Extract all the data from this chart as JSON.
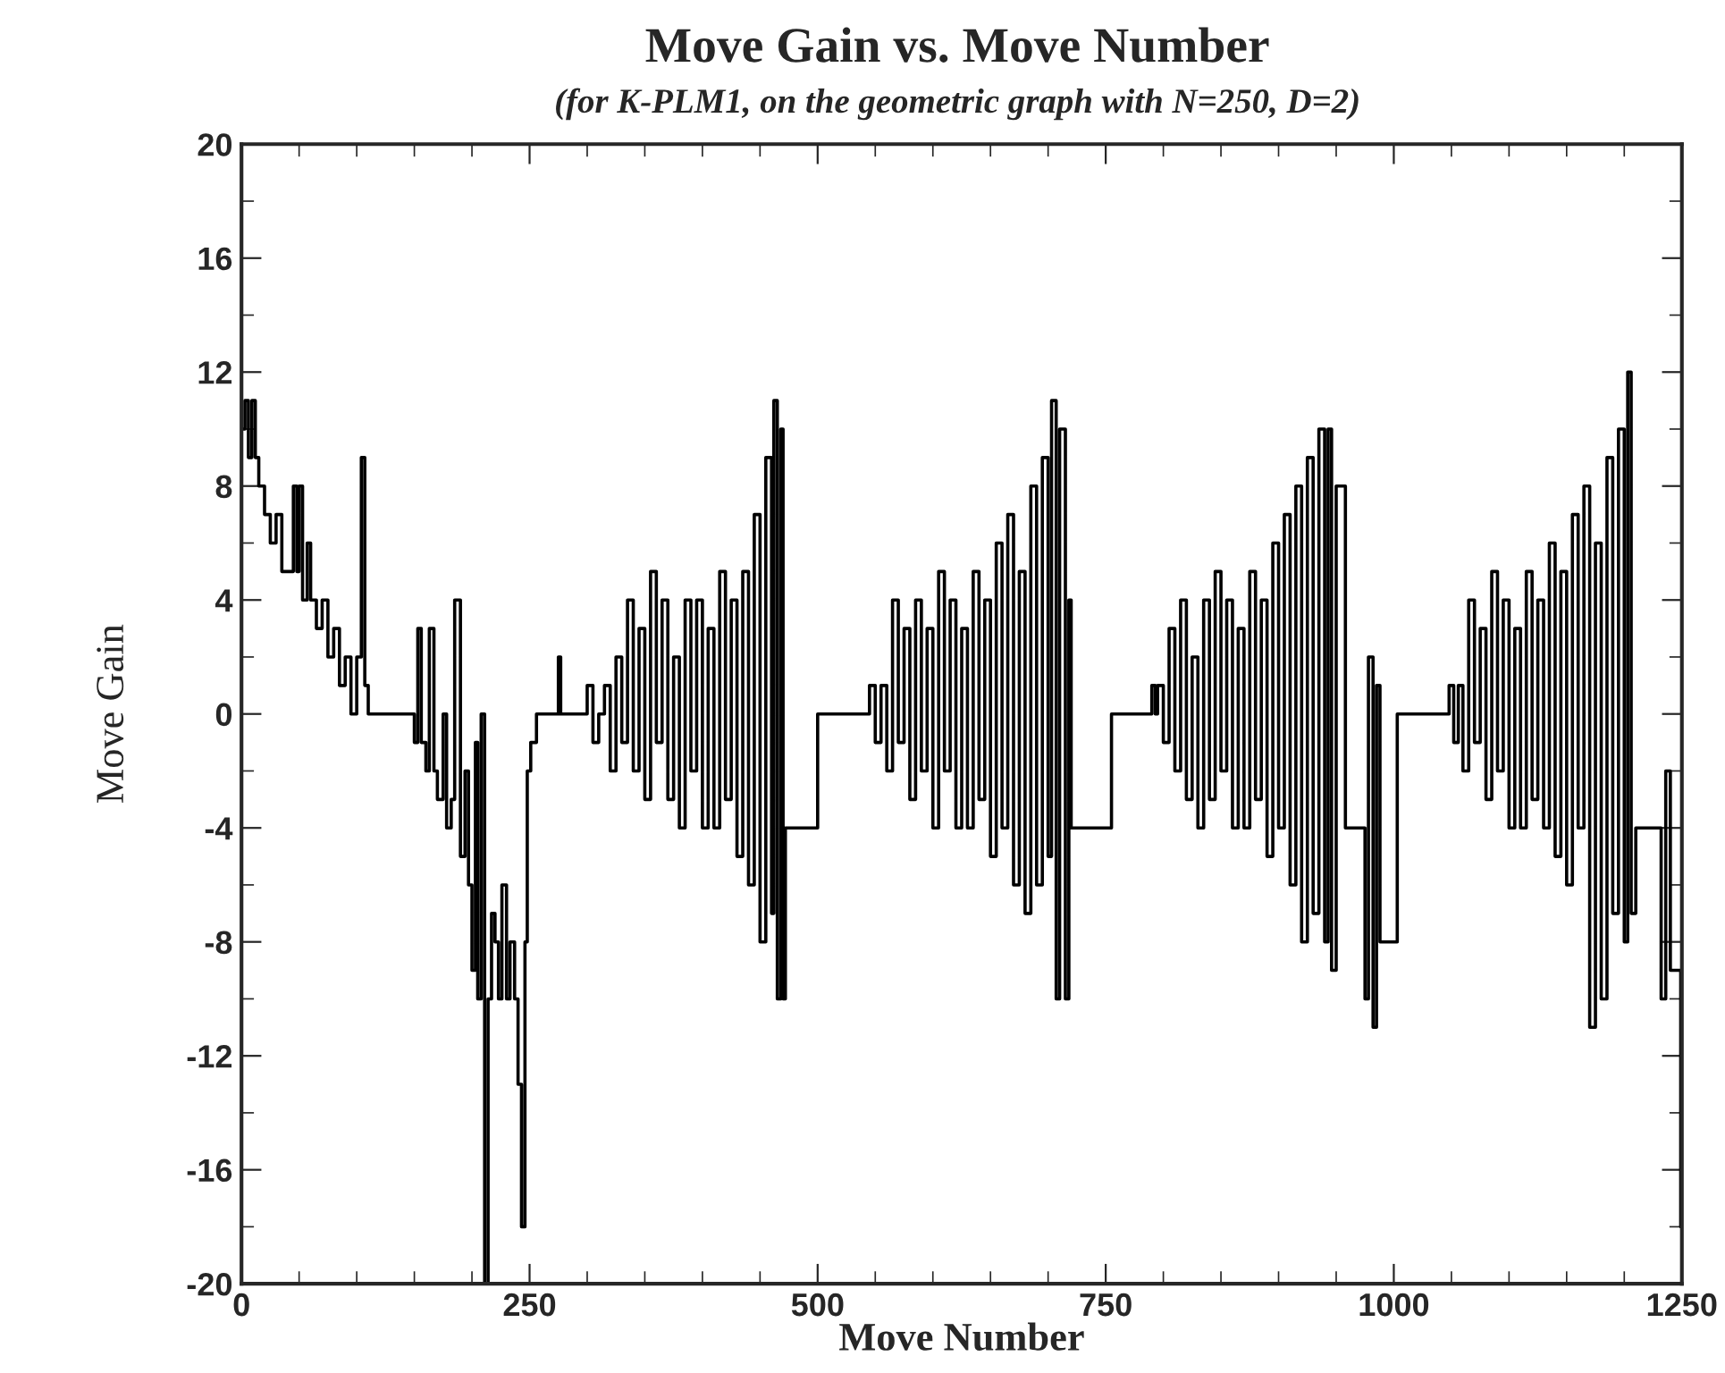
{
  "chart_data": {
    "type": "step",
    "title": "Move Gain vs. Move Number",
    "subtitle": "(for K-PLM1, on the geometric graph with N=250, D=2)",
    "xlabel": "Move Number",
    "ylabel": "Move Gain",
    "xlim": [
      0,
      1250
    ],
    "ylim": [
      -20,
      20
    ],
    "xticks": [
      0,
      250,
      500,
      750,
      1000,
      1250
    ],
    "yticks": [
      -20,
      -16,
      -12,
      -8,
      -4,
      0,
      4,
      8,
      12,
      16,
      20
    ],
    "grid": false,
    "legend": false,
    "marker": "none",
    "line_style": "solid",
    "series": [
      {
        "color": "#000000",
        "x": [
          0,
          3,
          6,
          9,
          12,
          15,
          20,
          25,
          30,
          35,
          40,
          45,
          48,
          50,
          53,
          57,
          60,
          65,
          70,
          75,
          80,
          85,
          90,
          95,
          100,
          104,
          107,
          110,
          150,
          153,
          156,
          160,
          163,
          167,
          170,
          175,
          178,
          182,
          185,
          190,
          194,
          197,
          200,
          203,
          205,
          208,
          211,
          214,
          217,
          220,
          223,
          226,
          230,
          233,
          237,
          240,
          243,
          246,
          248,
          251,
          253,
          256,
          260,
          275,
          277,
          300,
          305,
          310,
          315,
          320,
          325,
          330,
          335,
          340,
          345,
          350,
          355,
          360,
          365,
          370,
          375,
          380,
          385,
          390,
          395,
          400,
          405,
          410,
          415,
          420,
          425,
          430,
          435,
          440,
          445,
          450,
          455,
          460,
          462,
          465,
          468,
          470,
          472,
          500,
          545,
          550,
          555,
          560,
          565,
          570,
          575,
          580,
          585,
          590,
          595,
          600,
          605,
          610,
          615,
          620,
          625,
          630,
          635,
          640,
          645,
          650,
          655,
          660,
          665,
          670,
          675,
          680,
          685,
          690,
          695,
          700,
          703,
          707,
          710,
          715,
          718,
          720,
          755,
          790,
          793,
          795,
          800,
          805,
          810,
          815,
          820,
          825,
          830,
          835,
          840,
          845,
          850,
          855,
          860,
          865,
          870,
          875,
          880,
          885,
          890,
          895,
          900,
          905,
          910,
          915,
          920,
          925,
          930,
          935,
          940,
          943,
          946,
          950,
          958,
          975,
          978,
          982,
          985,
          988,
          1003,
          1048,
          1052,
          1056,
          1060,
          1065,
          1070,
          1075,
          1080,
          1085,
          1090,
          1095,
          1100,
          1105,
          1110,
          1115,
          1120,
          1125,
          1130,
          1135,
          1140,
          1145,
          1150,
          1155,
          1160,
          1165,
          1170,
          1175,
          1180,
          1185,
          1190,
          1195,
          1200,
          1203,
          1206,
          1210,
          1232,
          1236,
          1240,
          1246,
          1249
        ],
        "values": [
          10,
          11,
          9,
          11,
          9,
          8,
          7,
          6,
          7,
          5,
          5,
          8,
          5,
          8,
          4,
          6,
          4,
          3,
          4,
          2,
          3,
          1,
          2,
          0,
          2,
          9,
          1,
          0,
          -1,
          3,
          -1,
          -2,
          3,
          -2,
          -3,
          0,
          -4,
          -3,
          4,
          -5,
          -2,
          -6,
          -9,
          -1,
          -10,
          0,
          -20,
          -10,
          -7,
          -8,
          -10,
          -6,
          -10,
          -8,
          -10,
          -13,
          -18,
          -8,
          -2,
          -1,
          -1,
          0,
          0,
          2,
          0,
          1,
          -1,
          0,
          1,
          -2,
          2,
          -1,
          4,
          -2,
          3,
          -3,
          5,
          -1,
          4,
          -3,
          2,
          -4,
          4,
          -2,
          4,
          -4,
          3,
          -4,
          5,
          -3,
          4,
          -5,
          5,
          -6,
          7,
          -8,
          9,
          -7,
          11,
          -10,
          10,
          -10,
          -4,
          0,
          1,
          -1,
          1,
          -2,
          4,
          -1,
          3,
          -3,
          4,
          -2,
          3,
          -4,
          5,
          -2,
          4,
          -4,
          3,
          -4,
          5,
          -3,
          4,
          -5,
          6,
          -4,
          7,
          -6,
          5,
          -7,
          8,
          -6,
          9,
          -5,
          11,
          -10,
          10,
          -10,
          4,
          -4,
          0,
          1,
          0,
          1,
          -1,
          3,
          -2,
          4,
          -3,
          2,
          -4,
          4,
          -3,
          5,
          -2,
          4,
          -4,
          3,
          -4,
          5,
          -3,
          4,
          -5,
          6,
          -4,
          7,
          -6,
          8,
          -8,
          9,
          -7,
          10,
          -8,
          10,
          -9,
          8,
          -4,
          -10,
          2,
          -11,
          1,
          -8,
          0,
          1,
          -1,
          1,
          -2,
          4,
          -1,
          3,
          -3,
          5,
          -2,
          4,
          -4,
          3,
          -4,
          5,
          -3,
          4,
          -4,
          6,
          -5,
          5,
          -6,
          7,
          -4,
          8,
          -11,
          6,
          -10,
          9,
          -7,
          10,
          -8,
          12,
          -7,
          -4,
          -10,
          -2,
          -9,
          -9,
          -18
        ]
      }
    ]
  }
}
